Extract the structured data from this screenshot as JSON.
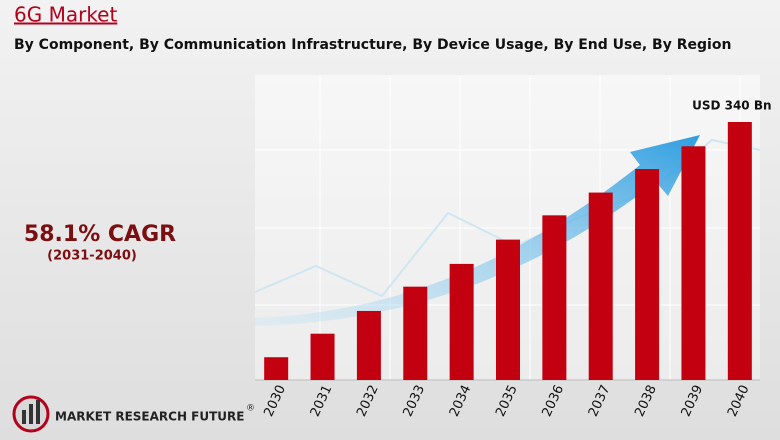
{
  "chart_data": {
    "type": "bar",
    "title": "6G Market",
    "subtitle": "By Component, By Communication Infrastructure, By Device Usage, By End Use, By Region",
    "cagr": "58.1% CAGR",
    "cagr_period": "(2031-2040)",
    "categories": [
      "2030",
      "2031",
      "2032",
      "2033",
      "2034",
      "2035",
      "2036",
      "2037",
      "2038",
      "2039",
      "2040"
    ],
    "values": [
      30,
      61,
      91,
      123,
      153,
      185,
      217,
      247,
      278,
      308,
      340
    ],
    "value_labels": [
      null,
      null,
      null,
      null,
      null,
      null,
      null,
      null,
      null,
      null,
      "USD 340 Bn"
    ],
    "color": "#c20010",
    "brand": "MARKET RESEARCH FUTURE",
    "brand_mark": "®"
  }
}
